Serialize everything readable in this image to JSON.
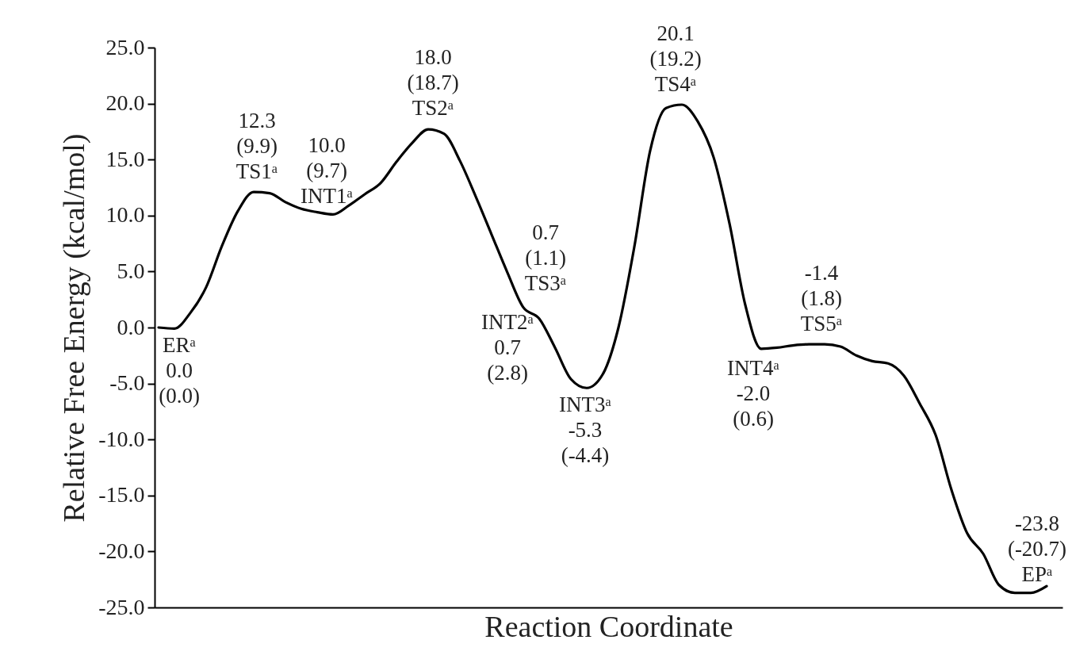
{
  "chart_data": {
    "type": "line",
    "xlabel": "Reaction Coordinate",
    "ylabel": "Relative Free Energy (kcal/mol)",
    "tick_labels": "y",
    "color": "#000000",
    "categories": [
      null,
      null,
      null,
      null,
      null,
      null,
      null,
      null,
      null,
      null,
      null,
      null,
      null,
      null,
      null,
      null,
      null,
      null,
      null,
      null,
      null,
      null,
      null,
      null,
      null,
      null,
      null,
      null,
      null,
      null,
      null,
      null,
      null,
      null,
      null,
      null,
      null,
      null,
      null,
      null,
      null,
      null,
      null,
      null,
      null,
      null,
      null,
      null,
      null,
      null,
      null,
      null,
      null,
      null,
      null,
      null,
      null
    ],
    "values": [
      0.0,
      -0.1,
      1.3,
      3.6,
      7.3,
      10.4,
      12.1,
      12.0,
      11.2,
      10.6,
      10.3,
      10.1,
      10.9,
      11.9,
      12.9,
      14.8,
      16.5,
      17.7,
      17.3,
      14.9,
      11.7,
      8.3,
      4.9,
      1.8,
      0.8,
      -1.8,
      -4.6,
      -5.4,
      -4.2,
      0.0,
      7.2,
      15.8,
      19.6,
      19.9,
      18.4,
      15.2,
      9.3,
      2.0,
      -1.9,
      -1.8,
      -1.6,
      -1.5,
      -1.5,
      -1.7,
      -2.5,
      -3.0,
      -3.2,
      -4.3,
      -6.8,
      -9.6,
      -14.5,
      -18.4,
      -20.2,
      -23.0,
      -23.7,
      -23.7,
      -23.1
    ],
    "ylim": [
      -25,
      25
    ],
    "yticks": [
      {
        "value": -25,
        "label": "-25.0"
      },
      {
        "value": -20,
        "label": "-20.0"
      },
      {
        "value": -15,
        "label": "-15.0"
      },
      {
        "value": -10,
        "label": "-10.0"
      },
      {
        "value": -5,
        "label": "-5.0"
      },
      {
        "value": 0,
        "label": "0.0"
      },
      {
        "value": 5,
        "label": "5.0"
      },
      {
        "value": 10,
        "label": "10.0"
      },
      {
        "value": 15,
        "label": "15.0"
      },
      {
        "value": 20,
        "label": "20.0"
      },
      {
        "value": 25,
        "label": "25.0"
      }
    ],
    "annotations": [
      {
        "text": "ERᵃ\n0.0\n(0.0)",
        "y": 0.0
      },
      {
        "text": "12.3\n(9.9)\nTS1ᵃ",
        "y": 12.3
      },
      {
        "text": "10.0\n(9.7)\nINT1ᵃ",
        "y": 10.0
      },
      {
        "text": "18.0\n(18.7)\nTS2ᵃ",
        "y": 18.0
      },
      "INT2ᵃ\n0.7\n(2.8)",
      "0.7\n(1.1)\nTS3ᵃ",
      {
        "text": "INT3ᵃ\n-5.3\n(-4.4)",
        "y": -5.3
      },
      {
        "text": "20.1\n(19.2)\nTS4ᵃ",
        "y": 20.1
      },
      "INT4ᵃ\n-2.0\n(0.6)",
      {
        "text": "-1.4\n(1.8)\nTS5ᵃ",
        "y": -1.4
      },
      {
        "text": "-23.8\n(-20.7)\nEPᵃ",
        "y": -23.8
      }
    ]
  }
}
